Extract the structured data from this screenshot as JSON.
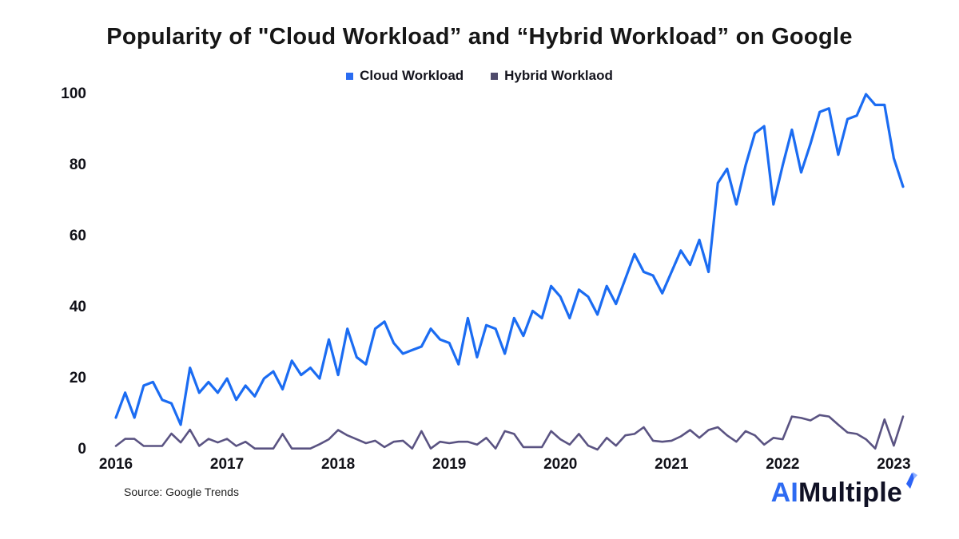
{
  "title": "Popularity of \"Cloud Workload” and “Hybrid Workload” on Google",
  "legend": {
    "items": [
      {
        "label": "Cloud Workload",
        "color": "#2a6cf1"
      },
      {
        "label": "Hybrid Worklaod",
        "color": "#4e4a6b"
      }
    ]
  },
  "source_note": "Source: Google Trends",
  "logo": {
    "prefix": "AI",
    "suffix": "Multiple",
    "prefix_color": "#2e6bf2",
    "suffix_color": "#101125",
    "bolt_icon_color": "#2c63f6",
    "bolt_icon_accent_color": "#8fb0ff"
  },
  "chart_data": {
    "type": "line",
    "title": "Popularity of \"Cloud Workload” and “Hybrid Workload” on Google",
    "xlabel": "",
    "ylabel": "",
    "x_axis": {
      "tick_labels": [
        "2016",
        "2017",
        "2018",
        "2019",
        "2020",
        "2021",
        "2022",
        "2023"
      ],
      "tick_every_n_points": 12,
      "unit": "year, monthly data points"
    },
    "y_axis": {
      "ticks": [
        0,
        20,
        40,
        60,
        80,
        100
      ],
      "lim": [
        0,
        100
      ]
    },
    "grid": false,
    "legend_position": "top-center",
    "series": [
      {
        "name": "Cloud Workload",
        "color": "#1b6cf2",
        "values": [
          9,
          16,
          9,
          18,
          19,
          14,
          13,
          7,
          23,
          16,
          19,
          16,
          20,
          14,
          18,
          15,
          20,
          22,
          17,
          25,
          21,
          23,
          20,
          31,
          21,
          34,
          26,
          24,
          34,
          36,
          30,
          27,
          28,
          29,
          34,
          31,
          30,
          24,
          37,
          26,
          35,
          34,
          27,
          37,
          32,
          39,
          37,
          46,
          43,
          37,
          45,
          43,
          38,
          46,
          41,
          48,
          55,
          50,
          49,
          44,
          50,
          56,
          52,
          59,
          50,
          75,
          79,
          69,
          80,
          89,
          91,
          69,
          80,
          90,
          78,
          86,
          95,
          96,
          83,
          93,
          94,
          100,
          97,
          97,
          82,
          74
        ]
      },
      {
        "name": "Hybrid Worklaod",
        "color": "#5a5382",
        "values": [
          1,
          3,
          3,
          1,
          1,
          1,
          4.5,
          2,
          5.6,
          1,
          3,
          2,
          3,
          1,
          2.2,
          0.3,
          0.3,
          0.3,
          4.4,
          0.3,
          0.3,
          0.3,
          1.5,
          2.9,
          5.5,
          4,
          2.9,
          1.8,
          2.5,
          0.7,
          2.2,
          2.5,
          0.3,
          5.2,
          0.3,
          2.2,
          1.8,
          2.2,
          2.2,
          1.4,
          3.3,
          0.3,
          5.2,
          4.4,
          0.7,
          0.7,
          0.7,
          5.2,
          2.9,
          1.4,
          4.4,
          1.1,
          0,
          3.3,
          1.1,
          4,
          4.4,
          6.3,
          2.5,
          2.2,
          2.5,
          3.7,
          5.5,
          3.3,
          5.5,
          6.3,
          4,
          2.2,
          5.2,
          4,
          1.4,
          3.3,
          2.9,
          9.3,
          8.9,
          8.2,
          9.7,
          9.3,
          7,
          4.8,
          4.4,
          2.9,
          0.3,
          8.5,
          1.1,
          9.3
        ]
      }
    ]
  }
}
